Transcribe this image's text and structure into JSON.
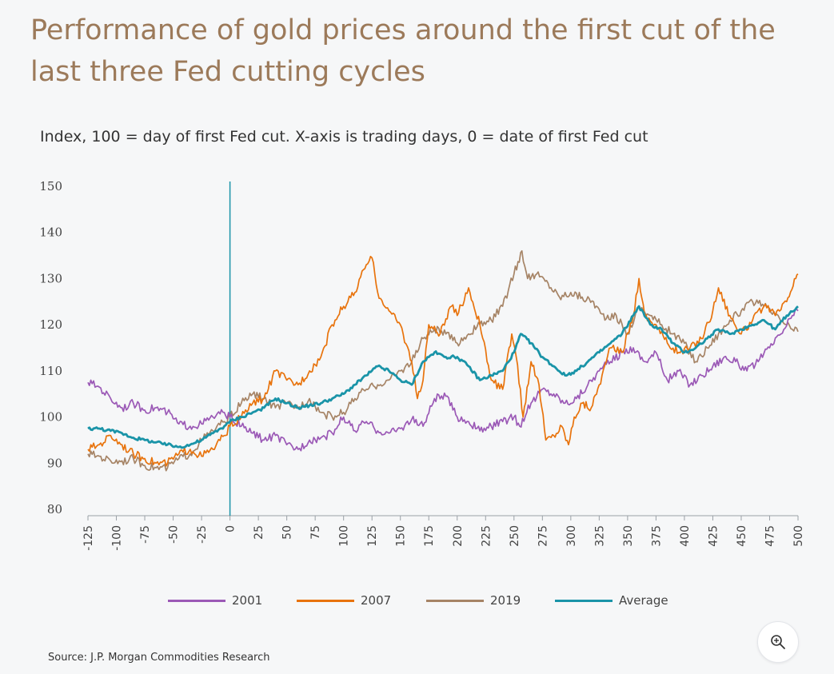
{
  "title": "Performance of gold prices around the first cut of the last three Fed cutting cycles",
  "subtitle": "Index, 100 = day of first Fed cut. X-axis is trading days, 0 = date of first Fed cut",
  "source": "Source: J.P. Morgan Commodities Research",
  "zoom_icon": "zoom-in-icon",
  "chart_data": {
    "type": "line",
    "xlim": [
      -125,
      500
    ],
    "ylim": [
      80,
      150
    ],
    "x_ticks": [
      -125,
      -100,
      -75,
      -50,
      -25,
      0,
      25,
      50,
      75,
      100,
      125,
      150,
      175,
      200,
      225,
      250,
      275,
      300,
      325,
      350,
      375,
      400,
      425,
      450,
      475,
      500
    ],
    "y_ticks": [
      80,
      90,
      100,
      110,
      120,
      130,
      140,
      150
    ],
    "vertical_line_x": 0,
    "grid": false,
    "legend_position": "bottom",
    "series": [
      {
        "name": "2001",
        "color": "#9b59b6",
        "points": [
          [
            -125,
            107.5
          ],
          [
            -115,
            106.5
          ],
          [
            -105,
            104
          ],
          [
            -95,
            102
          ],
          [
            -85,
            103
          ],
          [
            -75,
            101.5
          ],
          [
            -65,
            102
          ],
          [
            -55,
            101
          ],
          [
            -45,
            98.5
          ],
          [
            -35,
            98
          ],
          [
            -25,
            98.5
          ],
          [
            -15,
            100
          ],
          [
            -5,
            101
          ],
          [
            0,
            100
          ],
          [
            10,
            98
          ],
          [
            20,
            96.5
          ],
          [
            30,
            95
          ],
          [
            40,
            96
          ],
          [
            50,
            94
          ],
          [
            60,
            93
          ],
          [
            70,
            95
          ],
          [
            80,
            95.5
          ],
          [
            90,
            96.5
          ],
          [
            100,
            100
          ],
          [
            110,
            97
          ],
          [
            120,
            99
          ],
          [
            130,
            97
          ],
          [
            140,
            96.5
          ],
          [
            150,
            97.5
          ],
          [
            160,
            99.5
          ],
          [
            170,
            98
          ],
          [
            180,
            104
          ],
          [
            190,
            104.5
          ],
          [
            200,
            100
          ],
          [
            210,
            99
          ],
          [
            220,
            97
          ],
          [
            230,
            98
          ],
          [
            240,
            99
          ],
          [
            250,
            100
          ],
          [
            255,
            98
          ],
          [
            265,
            103
          ],
          [
            275,
            106
          ],
          [
            285,
            105
          ],
          [
            295,
            103
          ],
          [
            305,
            104
          ],
          [
            315,
            107
          ],
          [
            325,
            110
          ],
          [
            335,
            112
          ],
          [
            345,
            114
          ],
          [
            355,
            115
          ],
          [
            365,
            112
          ],
          [
            375,
            114
          ],
          [
            385,
            108
          ],
          [
            395,
            110
          ],
          [
            405,
            107
          ],
          [
            415,
            109
          ],
          [
            425,
            111
          ],
          [
            435,
            113
          ],
          [
            445,
            112
          ],
          [
            455,
            110
          ],
          [
            465,
            112
          ],
          [
            475,
            115
          ],
          [
            485,
            118
          ],
          [
            495,
            122
          ],
          [
            500,
            123
          ]
        ]
      },
      {
        "name": "2007",
        "color": "#e8730c",
        "points": [
          [
            -125,
            93
          ],
          [
            -115,
            94
          ],
          [
            -105,
            96
          ],
          [
            -95,
            94
          ],
          [
            -85,
            92
          ],
          [
            -75,
            91
          ],
          [
            -65,
            90
          ],
          [
            -55,
            90
          ],
          [
            -45,
            92
          ],
          [
            -35,
            93
          ],
          [
            -25,
            91.5
          ],
          [
            -15,
            93
          ],
          [
            -5,
            96
          ],
          [
            0,
            98
          ],
          [
            10,
            100
          ],
          [
            20,
            103
          ],
          [
            30,
            104
          ],
          [
            40,
            110
          ],
          [
            50,
            108
          ],
          [
            60,
            107
          ],
          [
            70,
            110
          ],
          [
            80,
            113
          ],
          [
            90,
            120
          ],
          [
            100,
            124
          ],
          [
            110,
            127
          ],
          [
            120,
            133
          ],
          [
            125,
            134.5
          ],
          [
            130,
            127
          ],
          [
            140,
            123
          ],
          [
            150,
            120
          ],
          [
            160,
            112
          ],
          [
            165,
            104
          ],
          [
            170,
            108
          ],
          [
            175,
            120
          ],
          [
            185,
            118
          ],
          [
            195,
            124
          ],
          [
            200,
            122
          ],
          [
            210,
            128
          ],
          [
            220,
            120
          ],
          [
            230,
            108
          ],
          [
            240,
            106
          ],
          [
            248,
            118
          ],
          [
            252,
            113
          ],
          [
            258,
            100
          ],
          [
            265,
            112
          ],
          [
            272,
            107
          ],
          [
            278,
            95
          ],
          [
            285,
            96
          ],
          [
            292,
            98
          ],
          [
            298,
            94
          ],
          [
            303,
            100
          ],
          [
            310,
            103
          ],
          [
            318,
            102
          ],
          [
            325,
            107
          ],
          [
            335,
            115
          ],
          [
            345,
            114
          ],
          [
            355,
            122
          ],
          [
            360,
            130
          ],
          [
            365,
            122
          ],
          [
            375,
            120
          ],
          [
            385,
            116
          ],
          [
            395,
            114
          ],
          [
            405,
            115
          ],
          [
            415,
            117
          ],
          [
            425,
            123
          ],
          [
            430,
            128
          ],
          [
            440,
            122
          ],
          [
            450,
            118
          ],
          [
            460,
            121
          ],
          [
            470,
            124
          ],
          [
            480,
            122
          ],
          [
            490,
            125
          ],
          [
            498,
            130
          ],
          [
            500,
            131
          ]
        ]
      },
      {
        "name": "2019",
        "color": "#a68466",
        "points": [
          [
            -125,
            92
          ],
          [
            -115,
            91.5
          ],
          [
            -105,
            90.5
          ],
          [
            -95,
            90.5
          ],
          [
            -85,
            91
          ],
          [
            -75,
            89.5
          ],
          [
            -65,
            89
          ],
          [
            -55,
            89
          ],
          [
            -45,
            91
          ],
          [
            -35,
            92
          ],
          [
            -25,
            95
          ],
          [
            -15,
            97
          ],
          [
            -5,
            99
          ],
          [
            0,
            100
          ],
          [
            10,
            103
          ],
          [
            20,
            105
          ],
          [
            30,
            104
          ],
          [
            40,
            102
          ],
          [
            50,
            103
          ],
          [
            60,
            102
          ],
          [
            70,
            104
          ],
          [
            80,
            101
          ],
          [
            90,
            100
          ],
          [
            100,
            101
          ],
          [
            110,
            104
          ],
          [
            120,
            106
          ],
          [
            130,
            107
          ],
          [
            140,
            108
          ],
          [
            150,
            110
          ],
          [
            160,
            112
          ],
          [
            170,
            117
          ],
          [
            180,
            119
          ],
          [
            190,
            118
          ],
          [
            200,
            116
          ],
          [
            210,
            118
          ],
          [
            220,
            120
          ],
          [
            230,
            121
          ],
          [
            240,
            124
          ],
          [
            250,
            131
          ],
          [
            257,
            136
          ],
          [
            262,
            130
          ],
          [
            270,
            131
          ],
          [
            280,
            129
          ],
          [
            290,
            126
          ],
          [
            300,
            127
          ],
          [
            310,
            126
          ],
          [
            320,
            125
          ],
          [
            330,
            121
          ],
          [
            340,
            122
          ],
          [
            350,
            118
          ],
          [
            360,
            124
          ],
          [
            370,
            122
          ],
          [
            380,
            120
          ],
          [
            390,
            118
          ],
          [
            400,
            116
          ],
          [
            410,
            112
          ],
          [
            420,
            115
          ],
          [
            430,
            118
          ],
          [
            440,
            121
          ],
          [
            450,
            123
          ],
          [
            460,
            125
          ],
          [
            470,
            124
          ],
          [
            480,
            122
          ],
          [
            490,
            120
          ],
          [
            495,
            119
          ],
          [
            500,
            118.5
          ]
        ]
      },
      {
        "name": "Average",
        "color": "#1a94a8",
        "points": [
          [
            -125,
            97.5
          ],
          [
            -115,
            97.5
          ],
          [
            -105,
            97
          ],
          [
            -95,
            96.5
          ],
          [
            -85,
            95.5
          ],
          [
            -75,
            95
          ],
          [
            -65,
            94.5
          ],
          [
            -55,
            94
          ],
          [
            -45,
            93.5
          ],
          [
            -35,
            94
          ],
          [
            -25,
            95
          ],
          [
            -15,
            96.5
          ],
          [
            -5,
            98
          ],
          [
            0,
            99
          ],
          [
            10,
            100
          ],
          [
            20,
            101
          ],
          [
            30,
            102
          ],
          [
            40,
            104
          ],
          [
            50,
            103
          ],
          [
            60,
            102
          ],
          [
            70,
            102.5
          ],
          [
            80,
            103
          ],
          [
            90,
            104
          ],
          [
            100,
            105
          ],
          [
            110,
            107
          ],
          [
            120,
            109
          ],
          [
            130,
            111
          ],
          [
            140,
            110
          ],
          [
            150,
            108
          ],
          [
            160,
            107
          ],
          [
            170,
            112
          ],
          [
            180,
            114
          ],
          [
            190,
            113
          ],
          [
            200,
            113
          ],
          [
            210,
            111
          ],
          [
            220,
            108
          ],
          [
            230,
            109
          ],
          [
            240,
            110
          ],
          [
            250,
            114
          ],
          [
            256,
            118
          ],
          [
            265,
            116
          ],
          [
            275,
            113
          ],
          [
            285,
            111
          ],
          [
            295,
            109
          ],
          [
            305,
            110
          ],
          [
            315,
            112
          ],
          [
            325,
            114
          ],
          [
            335,
            116
          ],
          [
            345,
            118
          ],
          [
            355,
            122
          ],
          [
            360,
            124
          ],
          [
            370,
            120
          ],
          [
            380,
            119
          ],
          [
            390,
            116
          ],
          [
            400,
            114
          ],
          [
            410,
            115
          ],
          [
            420,
            117
          ],
          [
            430,
            119
          ],
          [
            440,
            118
          ],
          [
            450,
            119
          ],
          [
            460,
            120
          ],
          [
            470,
            121
          ],
          [
            480,
            119
          ],
          [
            490,
            122
          ],
          [
            500,
            124
          ]
        ]
      }
    ]
  }
}
